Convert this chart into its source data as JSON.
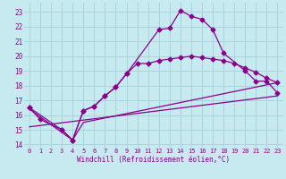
{
  "xlabel": "Windchill (Refroidissement éolien,°C)",
  "bg_color": "#c6eaf0",
  "grid_color": "#a8d4dc",
  "line_color": "#8b008b",
  "xtick_labels": [
    "0",
    "1",
    "2",
    "3",
    "4",
    "5",
    "6",
    "7",
    "8",
    "9",
    "10",
    "11",
    "12",
    "13",
    "14",
    "15",
    "16",
    "17",
    "18",
    "19",
    "20",
    "21",
    "22",
    "23"
  ],
  "ytick_labels": [
    "14",
    "15",
    "16",
    "17",
    "18",
    "19",
    "20",
    "21",
    "22",
    "23"
  ],
  "ylim": [
    13.8,
    23.6
  ],
  "xlim": [
    -0.5,
    23.5
  ],
  "series1_x": [
    0,
    1,
    3,
    4,
    5,
    6,
    7,
    8,
    9,
    12,
    13,
    14,
    15,
    16,
    17,
    18,
    20,
    21,
    22,
    23
  ],
  "series1_y": [
    16.5,
    15.7,
    15.0,
    14.3,
    16.3,
    16.6,
    17.3,
    17.9,
    18.8,
    21.8,
    21.9,
    23.1,
    22.7,
    22.5,
    21.8,
    20.2,
    19.0,
    18.3,
    18.3,
    17.5
  ],
  "series2_x": [
    0,
    3,
    4,
    5,
    6,
    7,
    8,
    9,
    10,
    11,
    12,
    13,
    14,
    15,
    16,
    17,
    18,
    19,
    20,
    21,
    22,
    23
  ],
  "series2_y": [
    16.5,
    15.0,
    14.3,
    16.3,
    16.6,
    17.3,
    17.9,
    18.8,
    19.5,
    19.5,
    19.7,
    19.8,
    19.9,
    20.0,
    19.9,
    19.8,
    19.7,
    19.5,
    19.2,
    18.9,
    18.5,
    18.2
  ],
  "series3_x": [
    0,
    4,
    5,
    23
  ],
  "series3_y": [
    16.4,
    14.3,
    15.5,
    18.2
  ],
  "series4_x": [
    0,
    23
  ],
  "series4_y": [
    15.2,
    17.3
  ]
}
